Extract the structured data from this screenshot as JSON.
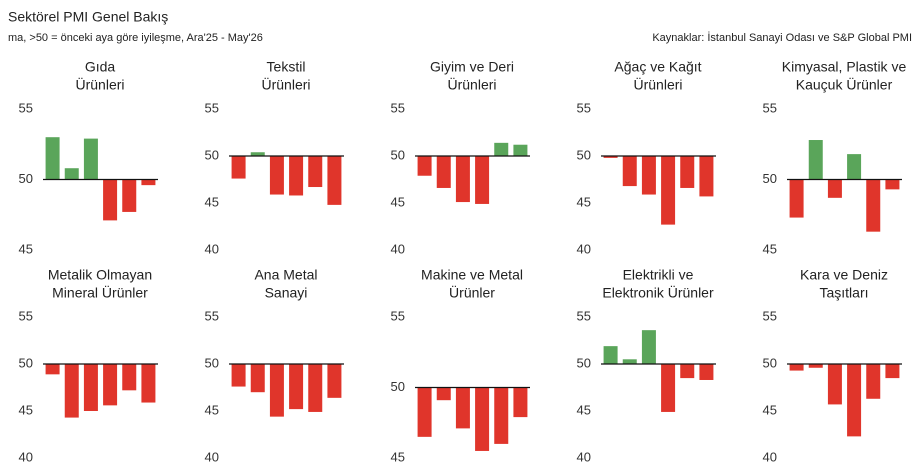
{
  "header": {
    "title": "Sektörel PMI Genel Bakış",
    "subtitle": "ma, >50 = önceki aya göre iyileşme, Ara'25 - May'26",
    "source": "Kaynaklar: İstanbul Sanayi Odası ve S&P Global PMI"
  },
  "chart_data": [
    {
      "type": "bar",
      "title": [
        "Gıda",
        "Ürünleri"
      ],
      "categories": [
        null,
        null,
        null,
        null,
        null,
        null
      ],
      "values": [
        53.0,
        50.8,
        52.9,
        47.1,
        47.7,
        49.6
      ],
      "ylim": [
        45,
        55
      ],
      "yticks": [
        45,
        50,
        55
      ],
      "baseline": 50,
      "color_up": "#5aa55a",
      "color_down": "#e0352b"
    },
    {
      "type": "bar",
      "title": [
        "Tekstil",
        "Ürünleri"
      ],
      "categories": [
        null,
        null,
        null,
        null,
        null,
        null
      ],
      "values": [
        47.6,
        50.4,
        45.9,
        45.8,
        46.7,
        44.8
      ],
      "ylim": [
        40,
        55
      ],
      "yticks": [
        40,
        45,
        50,
        55
      ],
      "baseline": 50,
      "color_up": "#5aa55a",
      "color_down": "#e0352b"
    },
    {
      "type": "bar",
      "title": [
        "Giyim ve Deri",
        "Ürünleri"
      ],
      "categories": [
        null,
        null,
        null,
        null,
        null,
        null
      ],
      "values": [
        47.9,
        46.6,
        45.1,
        44.9,
        51.4,
        51.2
      ],
      "ylim": [
        40,
        55
      ],
      "yticks": [
        40,
        45,
        50,
        55
      ],
      "baseline": 50,
      "color_up": "#5aa55a",
      "color_down": "#e0352b"
    },
    {
      "type": "bar",
      "title": [
        "Ağaç ve Kağıt",
        "Ürünleri"
      ],
      "categories": [
        null,
        null,
        null,
        null,
        null,
        null
      ],
      "values": [
        49.8,
        46.8,
        45.9,
        42.7,
        46.6,
        45.7
      ],
      "ylim": [
        40,
        55
      ],
      "yticks": [
        40,
        45,
        50,
        55
      ],
      "baseline": 50,
      "color_up": "#5aa55a",
      "color_down": "#e0352b"
    },
    {
      "type": "bar",
      "title": [
        "Kimyasal, Plastik ve",
        "Kauçuk Ürünler"
      ],
      "categories": [
        null,
        null,
        null,
        null,
        null,
        null
      ],
      "values": [
        47.3,
        52.8,
        48.7,
        51.8,
        46.3,
        49.3
      ],
      "ylim": [
        45,
        55
      ],
      "yticks": [
        45,
        50,
        55
      ],
      "baseline": 50,
      "color_up": "#5aa55a",
      "color_down": "#e0352b"
    },
    {
      "type": "bar",
      "title": [
        "Metalik Olmayan",
        "Mineral Ürünler"
      ],
      "categories": [
        null,
        null,
        null,
        null,
        null,
        null
      ],
      "values": [
        48.9,
        44.3,
        45.0,
        45.6,
        47.2,
        45.9
      ],
      "ylim": [
        40,
        55
      ],
      "yticks": [
        40,
        45,
        50,
        55
      ],
      "baseline": 50,
      "color_up": "#5aa55a",
      "color_down": "#e0352b"
    },
    {
      "type": "bar",
      "title": [
        "Ana Metal",
        "Sanayi"
      ],
      "categories": [
        null,
        null,
        null,
        null,
        null,
        null
      ],
      "values": [
        47.6,
        47.0,
        44.4,
        45.2,
        44.9,
        46.4
      ],
      "ylim": [
        40,
        55
      ],
      "yticks": [
        40,
        45,
        50,
        55
      ],
      "baseline": 50,
      "color_up": "#5aa55a",
      "color_down": "#e0352b"
    },
    {
      "type": "bar",
      "title": [
        "Makine ve Metal",
        "Ürünler"
      ],
      "categories": [
        null,
        null,
        null,
        null,
        null,
        null
      ],
      "values": [
        46.5,
        49.1,
        47.1,
        45.5,
        46.0,
        47.9
      ],
      "ylim": [
        45,
        55
      ],
      "yticks": [
        45,
        50,
        55
      ],
      "baseline": 50,
      "color_up": "#5aa55a",
      "color_down": "#e0352b"
    },
    {
      "type": "bar",
      "title": [
        "Elektrikli ve",
        "Elektronik Ürünler"
      ],
      "categories": [
        null,
        null,
        null,
        null,
        null,
        null
      ],
      "values": [
        51.9,
        50.5,
        53.6,
        44.9,
        48.5,
        48.3
      ],
      "ylim": [
        40,
        55
      ],
      "yticks": [
        40,
        45,
        50,
        55
      ],
      "baseline": 50,
      "color_up": "#5aa55a",
      "color_down": "#e0352b"
    },
    {
      "type": "bar",
      "title": [
        "Kara ve Deniz",
        "Taşıtları"
      ],
      "categories": [
        null,
        null,
        null,
        null,
        null,
        null
      ],
      "values": [
        49.3,
        49.6,
        45.7,
        42.3,
        46.3,
        48.5
      ],
      "ylim": [
        40,
        55
      ],
      "yticks": [
        40,
        45,
        50,
        55
      ],
      "baseline": 50,
      "color_up": "#5aa55a",
      "color_down": "#e0352b"
    }
  ]
}
